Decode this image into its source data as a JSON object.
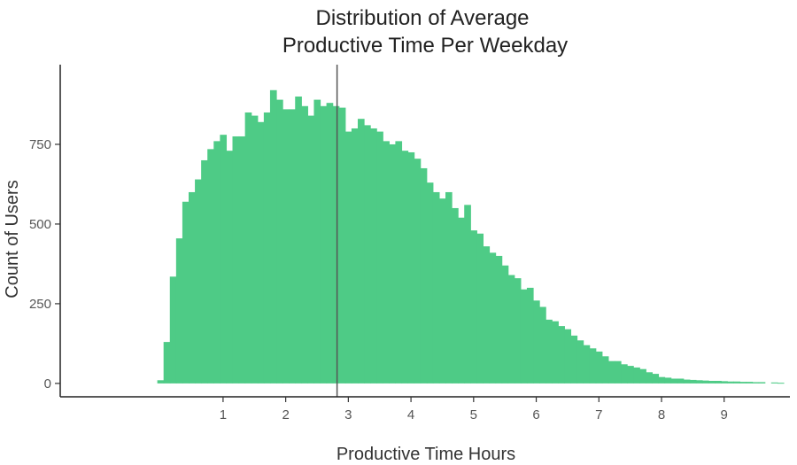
{
  "chart_data": {
    "type": "bar",
    "title_lines": [
      "Distribution of Average",
      "Productive Time Per Weekday"
    ],
    "xlabel": "Productive Time Hours",
    "ylabel": "Count of Users",
    "bin_width": 0.1,
    "x_start": -0.05,
    "values": [
      10,
      130,
      335,
      455,
      570,
      600,
      640,
      700,
      735,
      760,
      780,
      730,
      775,
      775,
      850,
      840,
      820,
      850,
      920,
      890,
      860,
      860,
      900,
      870,
      840,
      890,
      870,
      880,
      870,
      865,
      790,
      800,
      830,
      810,
      800,
      790,
      760,
      750,
      760,
      730,
      725,
      705,
      675,
      630,
      600,
      580,
      600,
      550,
      520,
      560,
      480,
      470,
      430,
      410,
      400,
      370,
      340,
      330,
      295,
      300,
      260,
      240,
      200,
      195,
      180,
      170,
      150,
      135,
      120,
      110,
      100,
      85,
      70,
      70,
      60,
      55,
      50,
      45,
      35,
      30,
      20,
      18,
      15,
      15,
      12,
      11,
      10,
      9,
      8,
      8,
      7,
      6,
      6,
      5,
      5,
      4,
      4,
      0,
      3,
      2
    ],
    "vline_x": 2.82,
    "xticks": [
      1,
      2,
      3,
      4,
      5,
      6,
      7,
      8,
      9
    ],
    "yticks": [
      0,
      250,
      500,
      750
    ],
    "xlim": [
      -1.6,
      10.05
    ],
    "ylim": [
      -42,
      1000
    ],
    "bar_color": "#4ecb86",
    "vline_color": "#555555",
    "grid": false
  }
}
